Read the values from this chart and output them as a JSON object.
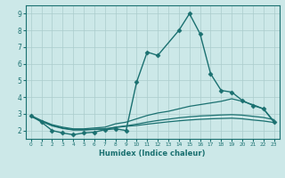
{
  "xlabel": "Humidex (Indice chaleur)",
  "xlim": [
    -0.5,
    23.5
  ],
  "ylim": [
    1.5,
    9.5
  ],
  "yticks": [
    2,
    3,
    4,
    5,
    6,
    7,
    8,
    9
  ],
  "xticks": [
    0,
    1,
    2,
    3,
    4,
    5,
    6,
    7,
    8,
    9,
    10,
    11,
    12,
    13,
    14,
    15,
    16,
    17,
    18,
    19,
    20,
    21,
    22,
    23
  ],
  "bg_color": "#cce8e8",
  "grid_color": "#aacccc",
  "line_color": "#1a7070",
  "lines": [
    {
      "x": [
        0,
        1,
        2,
        3,
        4,
        5,
        6,
        7,
        8,
        9,
        10,
        11,
        12,
        14,
        15,
        16,
        17,
        18,
        19,
        20,
        21,
        22,
        23
      ],
      "y": [
        2.9,
        2.5,
        2.0,
        1.85,
        1.75,
        1.85,
        1.9,
        2.05,
        2.1,
        2.0,
        4.9,
        6.7,
        6.5,
        8.0,
        9.0,
        7.8,
        5.4,
        4.4,
        4.3,
        3.8,
        3.5,
        3.3,
        2.5
      ],
      "marker": "D",
      "markersize": 2.5,
      "linewidth": 1.0
    },
    {
      "x": [
        0,
        1,
        2,
        3,
        4,
        5,
        6,
        7,
        8,
        9,
        10,
        11,
        12,
        13,
        14,
        15,
        16,
        17,
        18,
        19,
        20,
        21,
        22,
        23
      ],
      "y": [
        2.9,
        2.6,
        2.35,
        2.2,
        2.1,
        2.1,
        2.15,
        2.2,
        2.4,
        2.5,
        2.7,
        2.9,
        3.05,
        3.15,
        3.3,
        3.45,
        3.55,
        3.65,
        3.75,
        3.9,
        3.75,
        3.55,
        3.3,
        2.55
      ],
      "marker": null,
      "linewidth": 0.9
    },
    {
      "x": [
        0,
        1,
        2,
        3,
        4,
        5,
        6,
        7,
        8,
        9,
        10,
        11,
        12,
        13,
        14,
        15,
        16,
        17,
        18,
        19,
        20,
        21,
        22,
        23
      ],
      "y": [
        2.85,
        2.55,
        2.3,
        2.15,
        2.05,
        2.05,
        2.08,
        2.1,
        2.2,
        2.28,
        2.38,
        2.5,
        2.6,
        2.68,
        2.76,
        2.82,
        2.87,
        2.9,
        2.93,
        2.95,
        2.92,
        2.85,
        2.78,
        2.65
      ],
      "marker": null,
      "linewidth": 0.9
    },
    {
      "x": [
        0,
        1,
        2,
        3,
        4,
        5,
        6,
        7,
        8,
        9,
        10,
        11,
        12,
        13,
        14,
        15,
        16,
        17,
        18,
        19,
        20,
        21,
        22,
        23
      ],
      "y": [
        2.85,
        2.55,
        2.28,
        2.12,
        2.03,
        2.03,
        2.06,
        2.08,
        2.18,
        2.25,
        2.3,
        2.38,
        2.45,
        2.52,
        2.58,
        2.63,
        2.67,
        2.7,
        2.72,
        2.74,
        2.7,
        2.63,
        2.57,
        2.48
      ],
      "marker": null,
      "linewidth": 0.9
    }
  ]
}
